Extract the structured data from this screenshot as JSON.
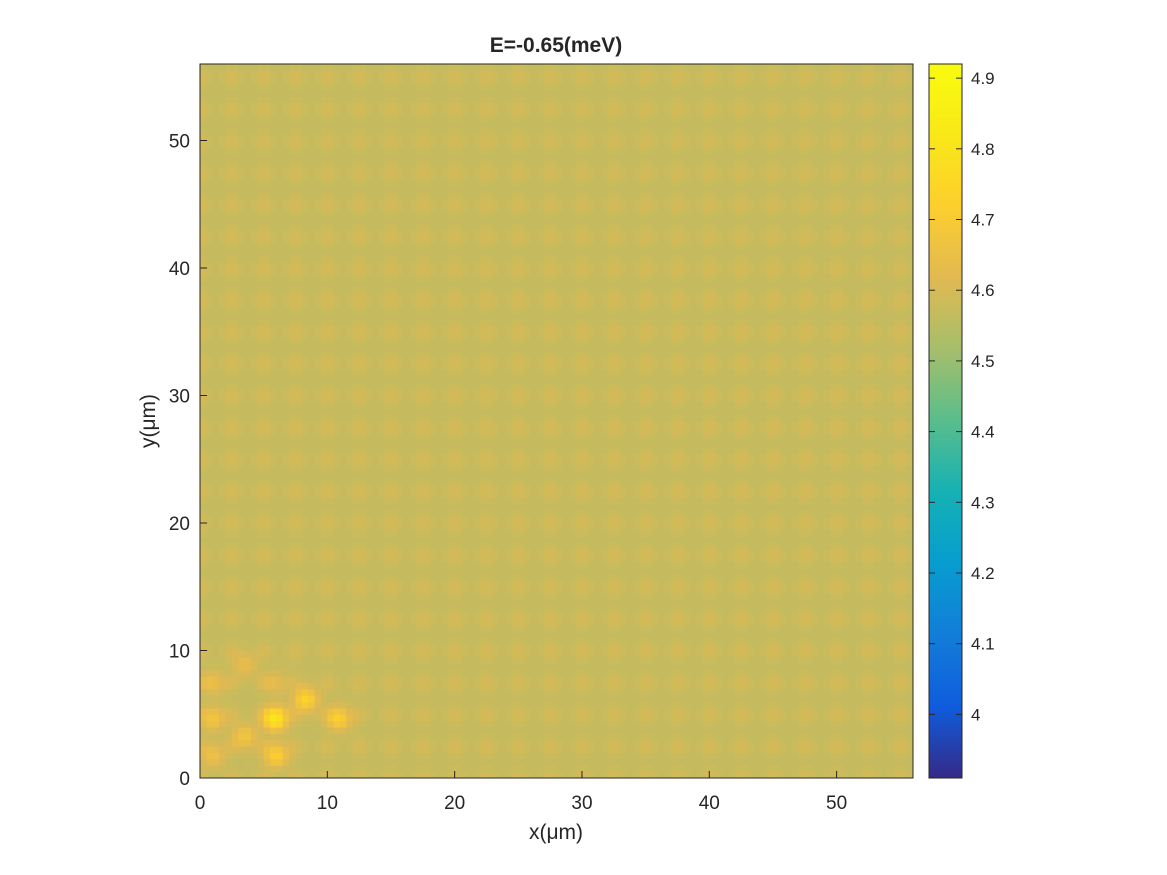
{
  "chart_data": {
    "type": "heatmap",
    "title": "E=-0.65(meV)",
    "xlabel": "x(μm)",
    "ylabel": "y(μm)",
    "xlim": [
      0,
      56
    ],
    "ylim": [
      0,
      56
    ],
    "xticks": [
      0,
      10,
      20,
      30,
      40,
      50
    ],
    "yticks": [
      0,
      10,
      20,
      30,
      40,
      50
    ],
    "grid": false,
    "colormap": "parula",
    "colorbar": {
      "clim": [
        3.91,
        4.92
      ],
      "ticks": [
        4,
        4.1,
        4.2,
        4.3,
        4.4,
        4.5,
        4.6,
        4.7,
        4.8,
        4.9
      ]
    },
    "background_value": 4.57,
    "lattice_bump_value": 4.6,
    "lattice_spacing_um": 2.5,
    "hotspots": [
      {
        "x": 5.9,
        "y": 4.7,
        "value": 4.82
      },
      {
        "x": 8.3,
        "y": 6.2,
        "value": 4.74
      },
      {
        "x": 10.9,
        "y": 4.7,
        "value": 4.72
      },
      {
        "x": 6.0,
        "y": 1.8,
        "value": 4.72
      },
      {
        "x": 3.5,
        "y": 3.3,
        "value": 4.68
      },
      {
        "x": 1.0,
        "y": 4.7,
        "value": 4.68
      },
      {
        "x": 1.0,
        "y": 1.8,
        "value": 4.66
      },
      {
        "x": 1.0,
        "y": 7.5,
        "value": 4.65
      },
      {
        "x": 3.5,
        "y": 8.9,
        "value": 4.64
      },
      {
        "x": 5.9,
        "y": 7.5,
        "value": 4.63
      }
    ]
  }
}
